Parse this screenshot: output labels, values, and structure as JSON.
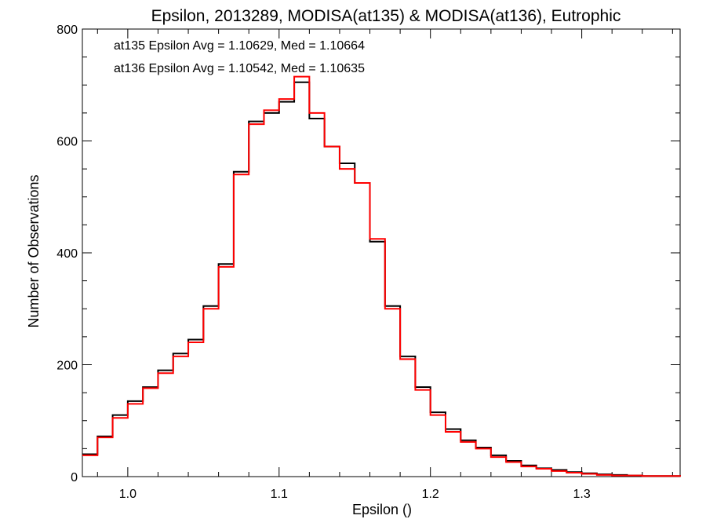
{
  "chart_data": {
    "type": "line",
    "title": "Epsilon, 2013289, MODISA(at135) & MODISA(at136), Eutrophic",
    "xlabel": "Epsilon ()",
    "ylabel": "Number of Observations",
    "xlim": [
      0.97,
      1.365
    ],
    "ylim": [
      0,
      800
    ],
    "x_ticks": [
      1.0,
      1.1,
      1.2,
      1.3
    ],
    "x_tick_labels": [
      "1.0",
      "1.1",
      "1.2",
      "1.3"
    ],
    "y_ticks": [
      0,
      200,
      400,
      600,
      800
    ],
    "y_tick_labels": [
      "0",
      "200",
      "400",
      "600",
      "800"
    ],
    "grid": false,
    "legend_position": "top-left",
    "annotations": [
      {
        "text": "at135 Epsilon Avg = 1.10629, Med = 1.10664",
        "color": "#000000"
      },
      {
        "text": "at136 Epsilon Avg = 1.10542, Med = 1.10635",
        "color": "#ff0000"
      }
    ],
    "step_style": "histogram-step",
    "x": [
      0.97,
      0.98,
      0.99,
      1.0,
      1.01,
      1.02,
      1.03,
      1.04,
      1.05,
      1.06,
      1.07,
      1.08,
      1.09,
      1.1,
      1.11,
      1.12,
      1.13,
      1.14,
      1.15,
      1.16,
      1.17,
      1.18,
      1.19,
      1.2,
      1.21,
      1.22,
      1.23,
      1.24,
      1.25,
      1.26,
      1.27,
      1.28,
      1.29,
      1.3,
      1.31,
      1.32,
      1.33,
      1.34,
      1.35,
      1.365
    ],
    "series": [
      {
        "name": "at135",
        "color": "#000000",
        "values": [
          40,
          72,
          110,
          135,
          160,
          190,
          220,
          245,
          305,
          380,
          545,
          635,
          650,
          670,
          705,
          640,
          590,
          560,
          525,
          420,
          305,
          215,
          160,
          115,
          85,
          65,
          52,
          38,
          28,
          20,
          15,
          12,
          8,
          6,
          4,
          3,
          2,
          1,
          1,
          0
        ]
      },
      {
        "name": "at136",
        "color": "#ff0000",
        "values": [
          38,
          70,
          105,
          130,
          158,
          185,
          215,
          240,
          300,
          375,
          540,
          630,
          655,
          675,
          715,
          650,
          590,
          550,
          525,
          425,
          300,
          210,
          155,
          110,
          80,
          62,
          50,
          35,
          26,
          18,
          14,
          10,
          7,
          5,
          3,
          2,
          2,
          1,
          1,
          0
        ]
      }
    ]
  }
}
